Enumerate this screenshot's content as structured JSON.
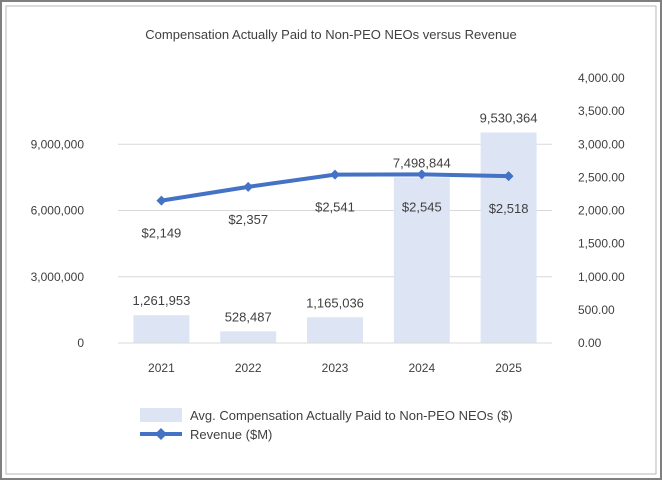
{
  "chart_data": {
    "type": "bar",
    "title": "Compensation Actually Paid to Non-PEO NEOs versus Revenue",
    "categories": [
      "2021",
      "2022",
      "2023",
      "2024",
      "2025"
    ],
    "series": [
      {
        "name": "Avg. Compensation Actually Paid to Non-PEO NEOs ($)",
        "type": "bar",
        "axis": "left",
        "values": [
          1261953,
          528487,
          1165036,
          7498844,
          9530364
        ],
        "labels": [
          "1,261,953",
          "528,487",
          "1,165,036",
          "7,498,844",
          "9,530,364"
        ],
        "color": "#dde5f4"
      },
      {
        "name": "Revenue ($M)",
        "type": "line",
        "axis": "right",
        "marker": "diamond",
        "values": [
          2149,
          2357,
          2541,
          2545,
          2518
        ],
        "labels": [
          "$2,149",
          "$2,357",
          "$2,541",
          "$2,545",
          "$2,518"
        ],
        "color": "#4472c4"
      }
    ],
    "y_left": {
      "ylim": [
        0,
        12000000
      ],
      "ticks": [
        0,
        3000000,
        6000000,
        9000000
      ],
      "tick_labels": [
        "0",
        "3,000,000",
        "6,000,000",
        "9,000,000"
      ]
    },
    "y_right": {
      "ylim": [
        0,
        4000
      ],
      "ticks": [
        0,
        500,
        1000,
        1500,
        2000,
        2500,
        3000,
        3500,
        4000
      ],
      "tick_labels": [
        "0.00",
        "500.00",
        "1,000.00",
        "1,500.00",
        "2,000.00",
        "2,500.00",
        "3,000.00",
        "3,500.00",
        "4,000.00"
      ]
    },
    "grid": true,
    "legend_position": "bottom"
  }
}
